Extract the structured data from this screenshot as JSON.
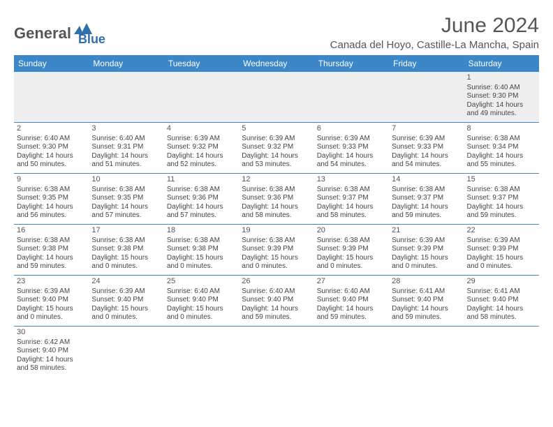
{
  "brand": {
    "general": "General",
    "blue": "Blue"
  },
  "title": {
    "month": "June 2024",
    "location": "Canada del Hoyo, Castille-La Mancha, Spain"
  },
  "header_bg": "#3b87c8",
  "days": [
    "Sunday",
    "Monday",
    "Tuesday",
    "Wednesday",
    "Thursday",
    "Friday",
    "Saturday"
  ],
  "weeks": [
    [
      null,
      null,
      null,
      null,
      null,
      null,
      {
        "n": "1",
        "sr": "6:40 AM",
        "ss": "9:30 PM",
        "dl": "14 hours and 49 minutes."
      }
    ],
    [
      {
        "n": "2",
        "sr": "6:40 AM",
        "ss": "9:30 PM",
        "dl": "14 hours and 50 minutes."
      },
      {
        "n": "3",
        "sr": "6:40 AM",
        "ss": "9:31 PM",
        "dl": "14 hours and 51 minutes."
      },
      {
        "n": "4",
        "sr": "6:39 AM",
        "ss": "9:32 PM",
        "dl": "14 hours and 52 minutes."
      },
      {
        "n": "5",
        "sr": "6:39 AM",
        "ss": "9:32 PM",
        "dl": "14 hours and 53 minutes."
      },
      {
        "n": "6",
        "sr": "6:39 AM",
        "ss": "9:33 PM",
        "dl": "14 hours and 54 minutes."
      },
      {
        "n": "7",
        "sr": "6:39 AM",
        "ss": "9:33 PM",
        "dl": "14 hours and 54 minutes."
      },
      {
        "n": "8",
        "sr": "6:38 AM",
        "ss": "9:34 PM",
        "dl": "14 hours and 55 minutes."
      }
    ],
    [
      {
        "n": "9",
        "sr": "6:38 AM",
        "ss": "9:35 PM",
        "dl": "14 hours and 56 minutes."
      },
      {
        "n": "10",
        "sr": "6:38 AM",
        "ss": "9:35 PM",
        "dl": "14 hours and 57 minutes."
      },
      {
        "n": "11",
        "sr": "6:38 AM",
        "ss": "9:36 PM",
        "dl": "14 hours and 57 minutes."
      },
      {
        "n": "12",
        "sr": "6:38 AM",
        "ss": "9:36 PM",
        "dl": "14 hours and 58 minutes."
      },
      {
        "n": "13",
        "sr": "6:38 AM",
        "ss": "9:37 PM",
        "dl": "14 hours and 58 minutes."
      },
      {
        "n": "14",
        "sr": "6:38 AM",
        "ss": "9:37 PM",
        "dl": "14 hours and 59 minutes."
      },
      {
        "n": "15",
        "sr": "6:38 AM",
        "ss": "9:37 PM",
        "dl": "14 hours and 59 minutes."
      }
    ],
    [
      {
        "n": "16",
        "sr": "6:38 AM",
        "ss": "9:38 PM",
        "dl": "14 hours and 59 minutes."
      },
      {
        "n": "17",
        "sr": "6:38 AM",
        "ss": "9:38 PM",
        "dl": "15 hours and 0 minutes."
      },
      {
        "n": "18",
        "sr": "6:38 AM",
        "ss": "9:38 PM",
        "dl": "15 hours and 0 minutes."
      },
      {
        "n": "19",
        "sr": "6:38 AM",
        "ss": "9:39 PM",
        "dl": "15 hours and 0 minutes."
      },
      {
        "n": "20",
        "sr": "6:38 AM",
        "ss": "9:39 PM",
        "dl": "15 hours and 0 minutes."
      },
      {
        "n": "21",
        "sr": "6:39 AM",
        "ss": "9:39 PM",
        "dl": "15 hours and 0 minutes."
      },
      {
        "n": "22",
        "sr": "6:39 AM",
        "ss": "9:39 PM",
        "dl": "15 hours and 0 minutes."
      }
    ],
    [
      {
        "n": "23",
        "sr": "6:39 AM",
        "ss": "9:40 PM",
        "dl": "15 hours and 0 minutes."
      },
      {
        "n": "24",
        "sr": "6:39 AM",
        "ss": "9:40 PM",
        "dl": "15 hours and 0 minutes."
      },
      {
        "n": "25",
        "sr": "6:40 AM",
        "ss": "9:40 PM",
        "dl": "15 hours and 0 minutes."
      },
      {
        "n": "26",
        "sr": "6:40 AM",
        "ss": "9:40 PM",
        "dl": "14 hours and 59 minutes."
      },
      {
        "n": "27",
        "sr": "6:40 AM",
        "ss": "9:40 PM",
        "dl": "14 hours and 59 minutes."
      },
      {
        "n": "28",
        "sr": "6:41 AM",
        "ss": "9:40 PM",
        "dl": "14 hours and 59 minutes."
      },
      {
        "n": "29",
        "sr": "6:41 AM",
        "ss": "9:40 PM",
        "dl": "14 hours and 58 minutes."
      }
    ],
    [
      {
        "n": "30",
        "sr": "6:42 AM",
        "ss": "9:40 PM",
        "dl": "14 hours and 58 minutes."
      },
      null,
      null,
      null,
      null,
      null,
      null
    ]
  ],
  "labels": {
    "sunrise": "Sunrise: ",
    "sunset": "Sunset: ",
    "daylight": "Daylight: "
  }
}
